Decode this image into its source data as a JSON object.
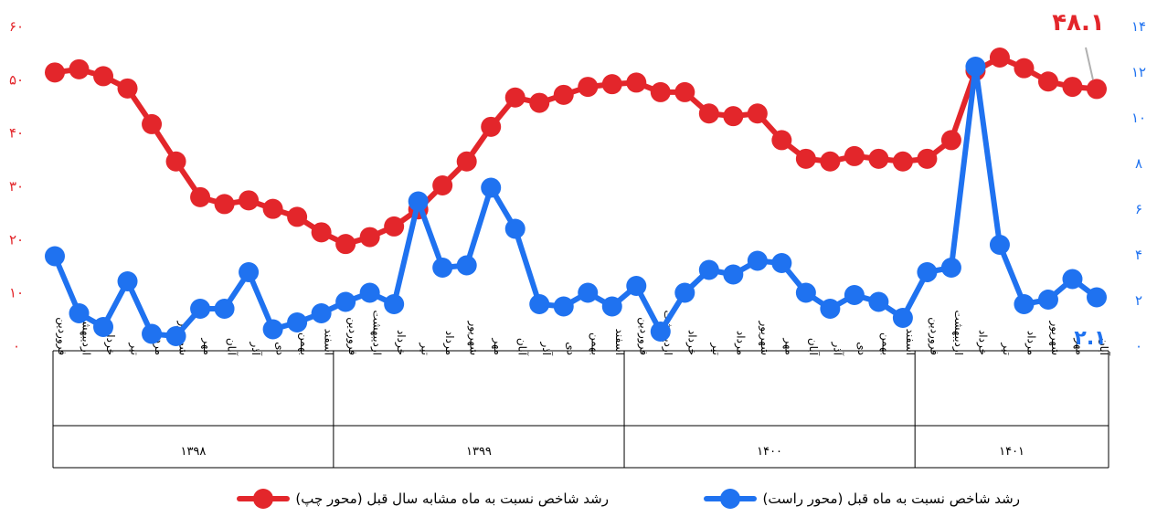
{
  "colors": {
    "red": "#e3262b",
    "blue": "#1f72f0",
    "axis": "#000000",
    "callout": "#b0b0b0"
  },
  "chart_data": {
    "type": "line",
    "y_left": {
      "ticks": [
        "۰",
        "۱۰",
        "۲۰",
        "۳۰",
        "۴۰",
        "۵۰",
        "۶۰"
      ],
      "values": [
        0,
        10,
        20,
        30,
        40,
        50,
        60
      ],
      "range": [
        0,
        60
      ]
    },
    "y_right": {
      "ticks": [
        "۰",
        "۲",
        "۴",
        "۶",
        "۸",
        "۱۰",
        "۱۲",
        "۱۴"
      ],
      "values": [
        0,
        2,
        4,
        6,
        8,
        10,
        12,
        14
      ],
      "range": [
        0,
        14
      ]
    },
    "categories": [
      "فروردین",
      "اردیبهشت",
      "خرداد",
      "تیر",
      "مرداد",
      "شهریور",
      "مهر",
      "آبان",
      "آذر",
      "دی",
      "بهمن",
      "اسفند",
      "فروردین",
      "اردیبهشت",
      "خرداد",
      "تیر",
      "مرداد",
      "شهریور",
      "مهر",
      "آبان",
      "آذر",
      "دی",
      "بهمن",
      "اسفند",
      "فروردین",
      "اردیبهشت",
      "خرداد",
      "تیر",
      "مرداد",
      "شهریور",
      "مهر",
      "آبان",
      "آذر",
      "دی",
      "بهمن",
      "اسفند",
      "فروردین",
      "اردیبهشت",
      "خرداد",
      "تیر",
      "مرداد",
      "شهریور",
      "مهر",
      "آبان"
    ],
    "groups": [
      {
        "label": "۱۳۹۸",
        "count": 12
      },
      {
        "label": "۱۳۹۹",
        "count": 12
      },
      {
        "label": "۱۴۰۰",
        "count": 12
      },
      {
        "label": "۱۴۰۱",
        "count": 8
      }
    ],
    "series": [
      {
        "name": "رشد شاخص نسبت به ماه مشابه سال قبل (محور چپ)",
        "axis": "left",
        "color": "#e3262b",
        "values": [
          51.2,
          51.8,
          50.5,
          48.2,
          41.5,
          34.5,
          27.8,
          26.5,
          27.2,
          25.6,
          24.1,
          21.2,
          19.0,
          20.3,
          22.3,
          25.5,
          30.0,
          34.5,
          41.0,
          46.5,
          45.5,
          47.0,
          48.5,
          49.0,
          49.3,
          47.5,
          47.5,
          43.5,
          43.0,
          43.5,
          38.5,
          35.0,
          34.5,
          35.5,
          35.0,
          34.5,
          35.0,
          38.5,
          51.5,
          54.0,
          52.0,
          49.5,
          48.5,
          48.1
        ]
      },
      {
        "name": "رشد شاخص نسبت به ماه قبل (محور راست)",
        "axis": "right",
        "color": "#1f72f0",
        "values": [
          3.9,
          1.4,
          0.8,
          2.8,
          0.5,
          0.4,
          1.6,
          1.6,
          3.2,
          0.7,
          1.0,
          1.4,
          1.9,
          2.3,
          1.8,
          6.3,
          3.4,
          3.5,
          6.9,
          5.1,
          1.8,
          1.7,
          2.3,
          1.7,
          2.6,
          0.6,
          2.3,
          3.3,
          3.1,
          3.7,
          3.6,
          2.3,
          1.6,
          2.2,
          1.9,
          1.2,
          3.2,
          3.4,
          12.2,
          4.4,
          1.8,
          2.0,
          2.9,
          2.1
        ]
      }
    ],
    "annotations": [
      {
        "text": "۴۸.۱",
        "series": "left",
        "index": 43
      },
      {
        "text": "۲.۱",
        "series": "right",
        "index": 43
      }
    ],
    "legend_position": "bottom",
    "grid": false
  }
}
